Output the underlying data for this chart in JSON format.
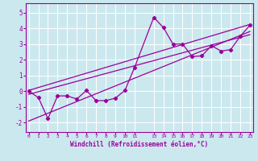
{
  "xlabel": "Windchill (Refroidissement éolien,°C)",
  "bg_color": "#cce8ef",
  "grid_color": "#ffffff",
  "line_color": "#990099",
  "xlim": [
    -0.3,
    23.3
  ],
  "ylim": [
    -2.6,
    5.6
  ],
  "xticks": [
    0,
    1,
    2,
    3,
    4,
    5,
    6,
    7,
    8,
    9,
    10,
    11,
    13,
    14,
    15,
    16,
    17,
    18,
    19,
    20,
    21,
    22,
    23
  ],
  "yticks": [
    -2,
    -1,
    0,
    1,
    2,
    3,
    4,
    5
  ],
  "data_x": [
    0,
    1,
    2,
    3,
    4,
    5,
    6,
    7,
    8,
    9,
    10,
    11,
    13,
    14,
    15,
    16,
    17,
    18,
    19,
    20,
    21,
    22,
    23
  ],
  "data_y": [
    0.0,
    -0.4,
    -1.75,
    -0.3,
    -0.3,
    -0.5,
    0.05,
    -0.6,
    -0.6,
    -0.45,
    0.05,
    1.5,
    4.7,
    4.05,
    3.0,
    3.0,
    2.2,
    2.25,
    2.9,
    2.55,
    2.65,
    3.5,
    4.2
  ],
  "line1_x": [
    0,
    23
  ],
  "line1_y": [
    -0.2,
    3.6
  ],
  "line2_x": [
    0,
    23
  ],
  "line2_y": [
    0.05,
    4.25
  ],
  "line3_x": [
    0,
    23
  ],
  "line3_y": [
    -1.9,
    3.8
  ]
}
